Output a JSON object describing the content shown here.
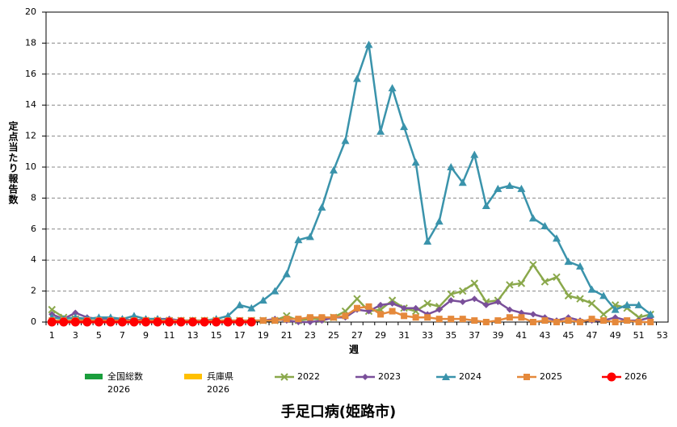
{
  "chart_data": {
    "type": "line",
    "title": "手足口病(姫路市)",
    "x_label": "週",
    "y_label": "定点当たり報告数",
    "categories": [
      1,
      null,
      3,
      null,
      5,
      null,
      7,
      null,
      9,
      null,
      11,
      null,
      13,
      null,
      15,
      null,
      17,
      null,
      19,
      null,
      21,
      null,
      23,
      null,
      25,
      null,
      27,
      null,
      29,
      null,
      31,
      null,
      33,
      null,
      35,
      null,
      37,
      null,
      39,
      null,
      41,
      null,
      43,
      null,
      45,
      null,
      47,
      null,
      49,
      null,
      51,
      null,
      53
    ],
    "ylim": [
      0,
      20
    ],
    "yticks": [
      0,
      2,
      4,
      6,
      8,
      10,
      12,
      14,
      16,
      18,
      20
    ],
    "grid": true,
    "series": [
      {
        "name": "全国総数\n2026",
        "kind": "bar",
        "color": "#1a9e3c",
        "values": [
          null,
          null,
          null,
          null,
          null,
          null,
          null,
          null,
          null,
          null,
          null,
          null,
          null,
          null,
          null,
          null,
          null,
          null,
          null,
          null,
          null,
          null,
          null,
          null,
          null,
          null,
          null,
          null,
          null,
          null,
          null,
          null,
          null,
          null,
          null,
          null,
          null,
          null,
          null,
          null,
          null,
          null,
          null,
          null,
          null,
          null,
          null,
          null,
          null,
          null,
          null,
          null,
          null
        ]
      },
      {
        "name": "兵庫県\n2026",
        "kind": "bar",
        "color": "#ffc000",
        "values": [
          null,
          null,
          null,
          null,
          null,
          null,
          null,
          null,
          null,
          null,
          null,
          null,
          null,
          null,
          null,
          null,
          null,
          null,
          null,
          null,
          null,
          null,
          null,
          null,
          null,
          null,
          null,
          null,
          null,
          null,
          null,
          null,
          null,
          null,
          null,
          null,
          null,
          null,
          null,
          null,
          null,
          null,
          null,
          null,
          null,
          null,
          null,
          null,
          null,
          null,
          null,
          null,
          null
        ]
      },
      {
        "name": "2022",
        "kind": "line",
        "marker": "x",
        "color": "#8aa84b",
        "values": [
          0.8,
          0.3,
          0.2,
          0.1,
          0.1,
          0.1,
          0.1,
          0.1,
          0.1,
          0.1,
          0.1,
          0.1,
          0.1,
          0.1,
          0.1,
          0.1,
          0.1,
          0.1,
          0.1,
          0.1,
          0.4,
          0.1,
          0.2,
          0.2,
          0.3,
          0.7,
          1.5,
          0.7,
          0.8,
          1.4,
          0.9,
          0.7,
          1.2,
          1.0,
          1.8,
          2.0,
          2.5,
          1.3,
          1.4,
          2.4,
          2.5,
          3.7,
          2.6,
          2.9,
          1.7,
          1.5,
          1.2,
          0.5,
          1.1,
          0.9,
          0.3,
          0.5,
          null
        ]
      },
      {
        "name": "2023",
        "kind": "line",
        "marker": "diamond",
        "color": "#7a4f9a",
        "values": [
          0.5,
          0.2,
          0.6,
          0.3,
          0.2,
          0.2,
          0.2,
          0.1,
          0.2,
          0.2,
          0.2,
          0.1,
          0.1,
          0.1,
          0.1,
          0.1,
          0.1,
          0.1,
          0.1,
          0.2,
          0.1,
          0,
          0,
          0.1,
          0.3,
          0.3,
          0.8,
          0.7,
          1.1,
          1.2,
          0.9,
          0.9,
          0.5,
          0.8,
          1.4,
          1.3,
          1.5,
          1.1,
          1.3,
          0.8,
          0.6,
          0.5,
          0.3,
          0.1,
          0.3,
          0.1,
          0.1,
          0.1,
          0.3,
          0.1,
          0.1,
          0.3,
          null
        ]
      },
      {
        "name": "2024",
        "kind": "line",
        "marker": "triangle",
        "color": "#3a93ab",
        "values": [
          0.3,
          0.2,
          0.3,
          0.2,
          0.3,
          0.3,
          0.2,
          0.4,
          0.2,
          0.2,
          0.1,
          0.1,
          0.1,
          0.1,
          0.2,
          0.4,
          1.1,
          0.9,
          1.4,
          2.0,
          3.1,
          5.3,
          5.5,
          7.4,
          9.8,
          11.7,
          15.7,
          17.9,
          12.3,
          15.1,
          12.6,
          10.3,
          5.2,
          6.5,
          10.0,
          9.0,
          10.8,
          7.5,
          8.6,
          8.8,
          8.6,
          6.7,
          6.2,
          5.4,
          3.9,
          3.6,
          2.1,
          1.7,
          0.8,
          1.1,
          1.1,
          0.5,
          null
        ]
      },
      {
        "name": "2025",
        "kind": "line",
        "marker": "square",
        "color": "#e5893b",
        "values": [
          0.1,
          0.1,
          0.1,
          0.1,
          0.1,
          0.1,
          0.1,
          0.1,
          0.1,
          0.1,
          0.1,
          0.1,
          0.1,
          0.1,
          0.1,
          0.1,
          0.1,
          0.1,
          0.1,
          0.1,
          0.2,
          0.2,
          0.3,
          0.3,
          0.3,
          0.4,
          0.9,
          1.0,
          0.5,
          0.7,
          0.4,
          0.3,
          0.3,
          0.2,
          0.2,
          0.2,
          0.1,
          0,
          0.1,
          0.3,
          0.3,
          0,
          0.1,
          0,
          0.1,
          0,
          0.2,
          0.1,
          0,
          0.1,
          0,
          0,
          null
        ]
      },
      {
        "name": "2026",
        "kind": "line",
        "marker": "circle",
        "color": "#ff0000",
        "values": [
          0,
          0,
          0,
          0,
          0,
          0,
          0,
          0,
          0,
          0,
          0,
          0,
          0,
          0,
          0,
          0,
          0,
          0,
          null,
          null,
          null,
          null,
          null,
          null,
          null,
          null,
          null,
          null,
          null,
          null,
          null,
          null,
          null,
          null,
          null,
          null,
          null,
          null,
          null,
          null,
          null,
          null,
          null,
          null,
          null,
          null,
          null,
          null,
          null,
          null,
          null,
          null,
          null
        ]
      }
    ]
  }
}
